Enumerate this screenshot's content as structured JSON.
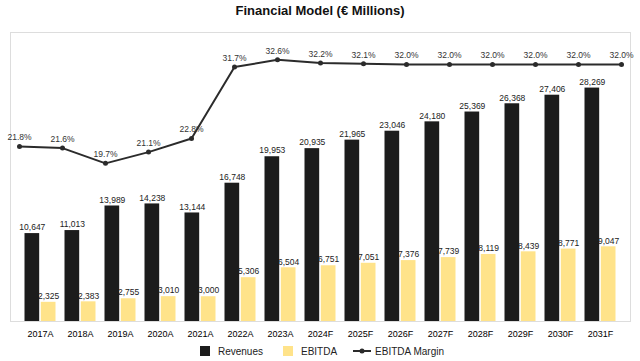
{
  "chart_data": {
    "type": "bar",
    "title": "Financial Model (€ Millions)",
    "categories": [
      "2017A",
      "2018A",
      "2019A",
      "2020A",
      "2021A",
      "2022A",
      "2023A",
      "2024F",
      "2025F",
      "2026F",
      "2027F",
      "2028F",
      "2029F",
      "2030F",
      "2031F"
    ],
    "ylim": [
      0,
      35000
    ],
    "y2lim": [
      0,
      36
    ],
    "tick_labels": "x",
    "data_labels": true,
    "legend": "bottom",
    "series": [
      {
        "name": "Revenues",
        "color": "#1c1c1c",
        "values": [
          10647,
          11013,
          13989,
          14238,
          13144,
          16748,
          19953,
          20935,
          21965,
          23046,
          24180,
          25369,
          26368,
          27406,
          28269
        ],
        "value_labels": [
          "10,647",
          "11,013",
          "13,989",
          "14,238",
          "13,144",
          "16,748",
          "19,953",
          "20,935",
          "21,965",
          "23,046",
          "24,180",
          "25,369",
          "26,368",
          "27,406",
          "28,269"
        ]
      },
      {
        "name": "EBITDA",
        "color": "#ffe38a",
        "values": [
          2325,
          2383,
          2755,
          3010,
          3000,
          5306,
          6504,
          6751,
          7051,
          7376,
          7739,
          8119,
          8439,
          8771,
          9047
        ],
        "value_labels": [
          "2,325",
          "2,383",
          "2,755",
          "3,010",
          "3,000",
          "5,306",
          "6,504",
          "6,751",
          "7,051",
          "7,376",
          "7,739",
          "8,119",
          "8,439",
          "8,771",
          "9,047"
        ]
      },
      {
        "name": "EBITDA Margin",
        "type": "line",
        "axis": "y2",
        "color": "#2b2b2b",
        "marker": "circle",
        "values": [
          21.8,
          21.6,
          19.7,
          21.1,
          22.8,
          31.7,
          32.6,
          32.2,
          32.1,
          32.0,
          32.0,
          32.0,
          32.0,
          32.0,
          32.0
        ],
        "value_labels": [
          "21.8%",
          "21.6%",
          "19.7%",
          "21.1%",
          "22.8%",
          "31.7%",
          "32.6%",
          "32.2%",
          "32.1%",
          "32.0%",
          "32.0%",
          "32.0%",
          "32.0%",
          "32.0%",
          "32.0%"
        ]
      }
    ]
  }
}
